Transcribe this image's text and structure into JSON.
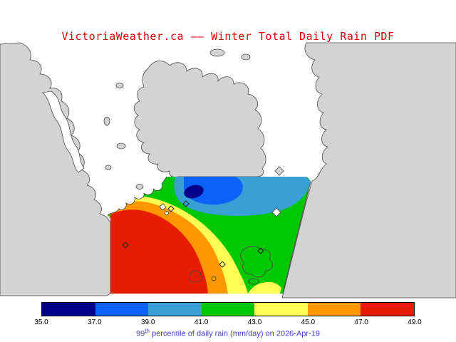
{
  "page": {
    "title": "VictoriaWeather.ca –– Winter Total Daily Rain PDF",
    "title_color": "#dd0000"
  },
  "map": {
    "land_color": "#d3d3d3",
    "water_color": "#ffffff",
    "coast_color": "#4a4a4a",
    "marker_color": "#222222"
  },
  "colorbar": {
    "tick_labels": [
      "35.0",
      "37.0",
      "39.0",
      "41.0",
      "43.0",
      "45.0",
      "47.0",
      "49.0"
    ],
    "segment_colors": [
      "#00008b",
      "#0b62f8",
      "#38a0d5",
      "#00c800",
      "#ffff54",
      "#ff9800",
      "#e81c00"
    ],
    "border_color": "#000000"
  },
  "caption": {
    "number": "99",
    "superscript": "th",
    "rest": " percentile of daily rain (mm/day) on 2026-Apr-19",
    "color": "#4141cc"
  },
  "chart_data": {
    "type": "heatmap",
    "title": "VictoriaWeather.ca –– Winter Total Daily Rain PDF",
    "caption": "99th percentile of daily rain (mm/day) on 2026-Apr-19",
    "units": "mm/day",
    "levels": [
      35.0,
      37.0,
      39.0,
      41.0,
      43.0,
      45.0,
      47.0,
      49.0
    ],
    "level_colors": [
      "#00008b",
      "#0b62f8",
      "#38a0d5",
      "#00c800",
      "#ffff54",
      "#ff9800",
      "#e81c00"
    ],
    "pattern": "Minimum below 37 mm/day (dark blue core) at the upper centre of the data region; values increase toward the lower left, exceeding 47 mm/day (red) across the south-west of the domain."
  }
}
